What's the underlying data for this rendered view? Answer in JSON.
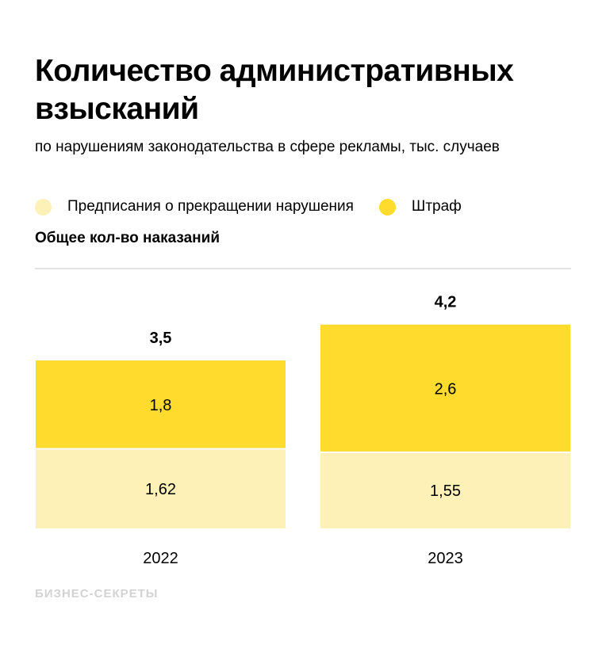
{
  "title": "Количество административных взысканий",
  "subtitle": "по нарушениям законодательства в сфере рекламы, тыс. случаев",
  "legend": [
    {
      "label": "Предписания о прекращении нарушения",
      "color": "#FEF1B8"
    },
    {
      "label": "Штраф",
      "color": "#FFDB2D"
    }
  ],
  "total_label": "Общее кол-во наказаний",
  "logo": "БИЗНЕС-СЕКРЕТЫ",
  "chart_data": {
    "type": "bar",
    "stacked": true,
    "categories": [
      "2022",
      "2023"
    ],
    "series": [
      {
        "name": "Предписания о прекращении нарушения",
        "values": [
          1.62,
          1.55
        ],
        "labels": [
          "1,62",
          "1,55"
        ],
        "color": "#FEF1B8"
      },
      {
        "name": "Штраф",
        "values": [
          1.8,
          2.6
        ],
        "labels": [
          "1,8",
          "2,6"
        ],
        "color": "#FFDB2D"
      }
    ],
    "totals": [
      3.5,
      4.2
    ],
    "total_labels": [
      "3,5",
      "4,2"
    ],
    "grid": false
  }
}
